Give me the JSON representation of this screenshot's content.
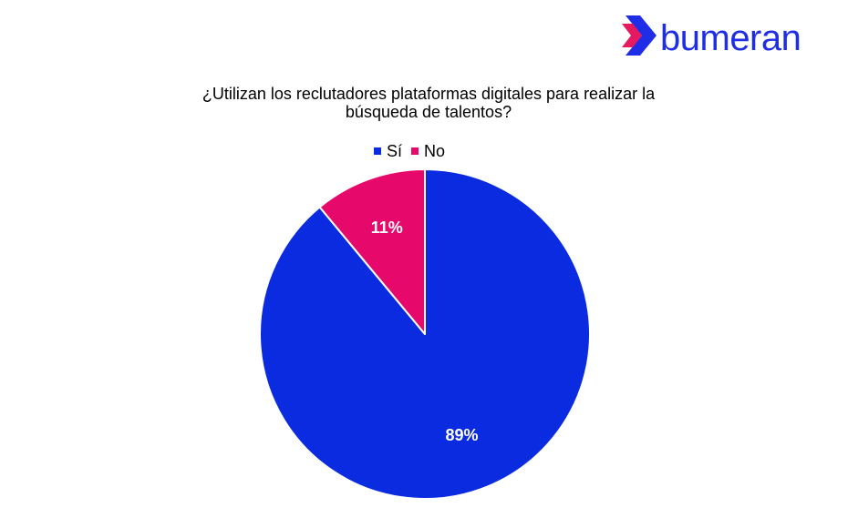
{
  "logo": {
    "text": "bumeran",
    "icon": "chevron-right-icon",
    "colors": {
      "text": "#1f2ee6",
      "icon_primary": "#1f2ee6",
      "icon_accent": "#e5195f"
    }
  },
  "chart_data": {
    "type": "pie",
    "title": "¿Utilizan los reclutadores plataformas digitales para realizar la búsqueda de talentos?",
    "title_lines": [
      "¿Utilizan los reclutadores plataformas digitales para realizar la",
      "búsqueda de talentos?"
    ],
    "legend_position": "top",
    "slices": [
      {
        "label": "Sí",
        "value": 89,
        "display": "89%",
        "color": "#0a2be0"
      },
      {
        "label": "No",
        "value": 11,
        "display": "11%",
        "color": "#e6096b"
      }
    ],
    "start_angle": "12 o'clock",
    "direction": "clockwise"
  }
}
